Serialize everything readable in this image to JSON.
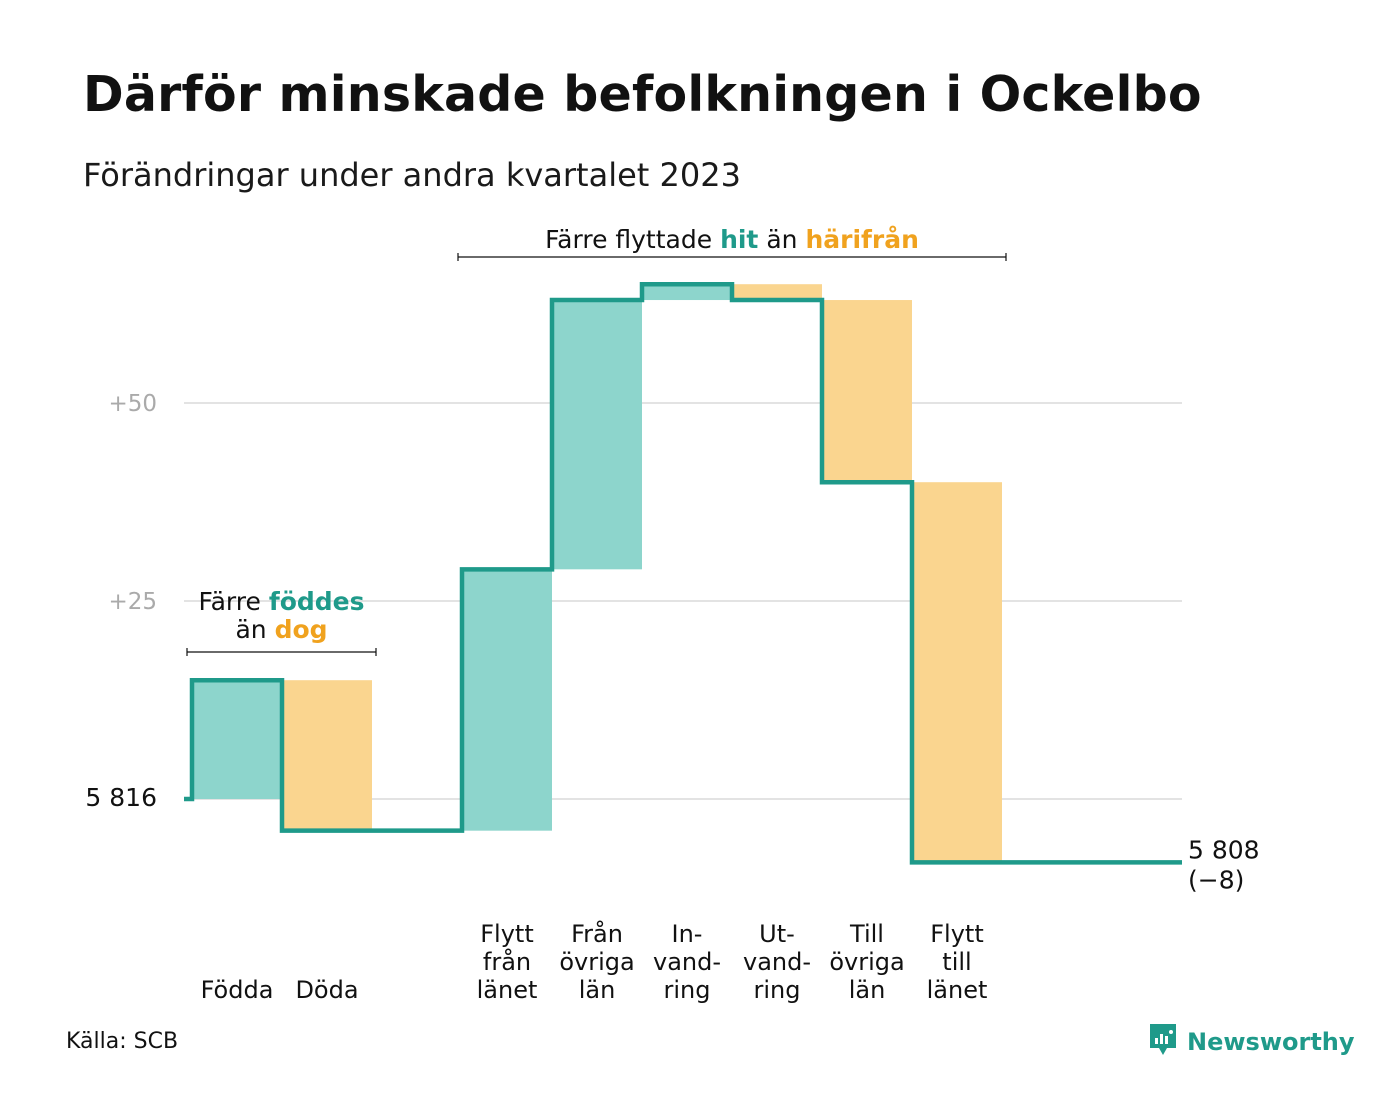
{
  "title": "Därför minskade befolkningen i Ockelbo",
  "subtitle": "Förändringar under andra kvartalet 2023",
  "source": "Källa: SCB",
  "brand": {
    "name": "Newsworthy",
    "icon": "newsworthy-logo-icon"
  },
  "colors": {
    "inflow": "#8dd5cc",
    "outflow": "#fad58f",
    "line": "#1f9a8a",
    "accent_in": "#1f9a8a",
    "accent_out": "#f0a21e",
    "grid": "#e3e3e3",
    "tick": "#aaaaaa"
  },
  "annotations": {
    "births": {
      "line1_pre": "Färre ",
      "line1_hi": "föddes",
      "line2_pre": "än ",
      "line2_hi": "dog"
    },
    "migration": {
      "pre": "Färre flyttade ",
      "hi1": "hit",
      "mid": " än ",
      "hi2": "härifrån"
    }
  },
  "chart_data": {
    "type": "waterfall",
    "title": "Därför minskade befolkningen i Ockelbo",
    "subtitle": "Förändringar under andra kvartalet 2023",
    "start_value": 5816,
    "start_label": "5 816",
    "end_value": 5808,
    "end_label": "5 808",
    "end_change_label": "(−8)",
    "ylim": [
      -8,
      65
    ],
    "yticks": [
      {
        "value": 25,
        "label": "+25"
      },
      {
        "value": 50,
        "label": "+50"
      }
    ],
    "grid": true,
    "steps": [
      {
        "label": [
          "Födda"
        ],
        "delta": 15,
        "kind": "in"
      },
      {
        "label": [
          "Döda"
        ],
        "delta": -19,
        "kind": "out"
      },
      {
        "label": [
          ""
        ],
        "delta": 0,
        "kind": "gap"
      },
      {
        "label": [
          "Flytt",
          "från",
          "länet"
        ],
        "delta": 33,
        "kind": "in"
      },
      {
        "label": [
          "Från",
          "övriga",
          "län"
        ],
        "delta": 34,
        "kind": "in"
      },
      {
        "label": [
          "In-",
          "vand-",
          "ring"
        ],
        "delta": 2,
        "kind": "in"
      },
      {
        "label": [
          "Ut-",
          "vand-",
          "ring"
        ],
        "delta": -2,
        "kind": "out"
      },
      {
        "label": [
          "Till",
          "övriga",
          "län"
        ],
        "delta": -23,
        "kind": "out"
      },
      {
        "label": [
          "Flytt",
          "till",
          "länet"
        ],
        "delta": -48,
        "kind": "out"
      },
      {
        "label": [
          ""
        ],
        "delta": 0,
        "kind": "gap"
      }
    ]
  }
}
